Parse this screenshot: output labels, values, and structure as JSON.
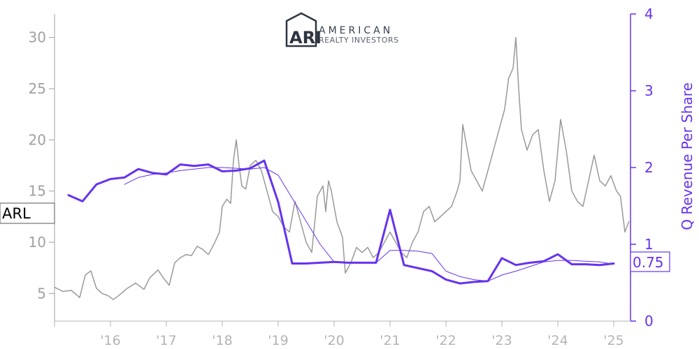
{
  "logo": {
    "mark": "ARI",
    "line1": "AMERICAN",
    "line2": "REALTY INVESTORS"
  },
  "chart_data": {
    "type": "line",
    "ticker": "ARL",
    "last_value_label": "0.75",
    "ylabel_right": "Q Revenue Per Share",
    "left_axis": {
      "ticks": [
        5,
        10,
        15,
        20,
        25,
        30
      ],
      "ylim": [
        2.3,
        32.3
      ]
    },
    "right_axis": {
      "ticks": [
        0,
        1,
        2,
        3,
        4
      ],
      "ylim": [
        0,
        4
      ]
    },
    "x_axis": {
      "range": [
        2015.0,
        2025.3
      ],
      "ticks": [
        {
          "x": 2016,
          "label": "'16"
        },
        {
          "x": 2017,
          "label": "'17"
        },
        {
          "x": 2018,
          "label": "'18"
        },
        {
          "x": 2019,
          "label": "'19"
        },
        {
          "x": 2020,
          "label": "'20"
        },
        {
          "x": 2021,
          "label": "'21"
        },
        {
          "x": 2022,
          "label": "'22"
        },
        {
          "x": 2023,
          "label": "'23"
        },
        {
          "x": 2024,
          "label": "'24"
        },
        {
          "x": 2025,
          "label": "'25"
        }
      ]
    },
    "colors": {
      "price": "#999999",
      "revenue": "#6633ee",
      "left_axis": "#a0a0a0",
      "right_axis": "#6633ee"
    },
    "series": [
      {
        "key": "price",
        "axis": "left",
        "points": [
          [
            2015.0,
            5.6
          ],
          [
            2015.15,
            5.2
          ],
          [
            2015.3,
            5.3
          ],
          [
            2015.45,
            4.6
          ],
          [
            2015.55,
            6.8
          ],
          [
            2015.65,
            7.2
          ],
          [
            2015.75,
            5.5
          ],
          [
            2015.85,
            5.0
          ],
          [
            2015.95,
            4.8
          ],
          [
            2016.05,
            4.4
          ],
          [
            2016.15,
            4.8
          ],
          [
            2016.3,
            5.5
          ],
          [
            2016.45,
            6.0
          ],
          [
            2016.6,
            5.4
          ],
          [
            2016.7,
            6.5
          ],
          [
            2016.85,
            7.3
          ],
          [
            2016.95,
            6.5
          ],
          [
            2017.05,
            5.8
          ],
          [
            2017.15,
            8.0
          ],
          [
            2017.25,
            8.5
          ],
          [
            2017.35,
            8.8
          ],
          [
            2017.45,
            8.7
          ],
          [
            2017.55,
            9.6
          ],
          [
            2017.65,
            9.3
          ],
          [
            2017.75,
            8.8
          ],
          [
            2017.85,
            9.8
          ],
          [
            2017.95,
            11.0
          ],
          [
            2018.0,
            13.5
          ],
          [
            2018.08,
            14.2
          ],
          [
            2018.15,
            13.8
          ],
          [
            2018.2,
            18.0
          ],
          [
            2018.25,
            20.0
          ],
          [
            2018.3,
            17.5
          ],
          [
            2018.35,
            15.5
          ],
          [
            2018.42,
            15.2
          ],
          [
            2018.5,
            17.5
          ],
          [
            2018.6,
            18.0
          ],
          [
            2018.7,
            17.0
          ],
          [
            2018.8,
            15.0
          ],
          [
            2018.9,
            13.0
          ],
          [
            2019.0,
            12.5
          ],
          [
            2019.1,
            11.5
          ],
          [
            2019.2,
            11.0
          ],
          [
            2019.3,
            14.0
          ],
          [
            2019.4,
            12.0
          ],
          [
            2019.5,
            10.0
          ],
          [
            2019.6,
            9.0
          ],
          [
            2019.7,
            14.5
          ],
          [
            2019.8,
            15.5
          ],
          [
            2019.85,
            13.0
          ],
          [
            2019.9,
            16.0
          ],
          [
            2019.95,
            15.0
          ],
          [
            2020.05,
            12.0
          ],
          [
            2020.15,
            10.5
          ],
          [
            2020.2,
            7.0
          ],
          [
            2020.3,
            8.0
          ],
          [
            2020.4,
            9.5
          ],
          [
            2020.5,
            9.0
          ],
          [
            2020.6,
            9.5
          ],
          [
            2020.7,
            8.5
          ],
          [
            2020.8,
            9.0
          ],
          [
            2020.9,
            10.0
          ],
          [
            2021.0,
            11.0
          ],
          [
            2021.1,
            10.0
          ],
          [
            2021.2,
            9.0
          ],
          [
            2021.3,
            8.5
          ],
          [
            2021.4,
            10.0
          ],
          [
            2021.5,
            11.0
          ],
          [
            2021.6,
            13.0
          ],
          [
            2021.7,
            13.5
          ],
          [
            2021.8,
            12.0
          ],
          [
            2021.9,
            12.5
          ],
          [
            2022.0,
            13.0
          ],
          [
            2022.1,
            13.5
          ],
          [
            2022.2,
            15.0
          ],
          [
            2022.25,
            16.0
          ],
          [
            2022.3,
            21.5
          ],
          [
            2022.35,
            20.0
          ],
          [
            2022.45,
            17.0
          ],
          [
            2022.55,
            16.0
          ],
          [
            2022.65,
            15.0
          ],
          [
            2022.75,
            17.0
          ],
          [
            2022.85,
            19.0
          ],
          [
            2022.95,
            21.0
          ],
          [
            2023.05,
            23.0
          ],
          [
            2023.12,
            26.0
          ],
          [
            2023.2,
            27.0
          ],
          [
            2023.25,
            30.0
          ],
          [
            2023.3,
            25.0
          ],
          [
            2023.35,
            21.0
          ],
          [
            2023.45,
            19.0
          ],
          [
            2023.55,
            20.5
          ],
          [
            2023.65,
            21.0
          ],
          [
            2023.75,
            17.0
          ],
          [
            2023.85,
            14.0
          ],
          [
            2023.95,
            16.0
          ],
          [
            2024.05,
            22.0
          ],
          [
            2024.15,
            19.0
          ],
          [
            2024.25,
            15.0
          ],
          [
            2024.35,
            14.0
          ],
          [
            2024.45,
            13.5
          ],
          [
            2024.55,
            16.0
          ],
          [
            2024.65,
            18.5
          ],
          [
            2024.75,
            16.0
          ],
          [
            2024.85,
            15.5
          ],
          [
            2024.95,
            16.5
          ],
          [
            2025.05,
            15.0
          ],
          [
            2025.12,
            14.5
          ],
          [
            2025.2,
            11.0
          ],
          [
            2025.27,
            12.0
          ]
        ]
      },
      {
        "key": "revenue",
        "axis": "right",
        "points": [
          [
            2015.25,
            1.64
          ],
          [
            2015.5,
            1.56
          ],
          [
            2015.75,
            1.78
          ],
          [
            2016.0,
            1.85
          ],
          [
            2016.25,
            1.87
          ],
          [
            2016.5,
            1.98
          ],
          [
            2016.75,
            1.93
          ],
          [
            2017.0,
            1.91
          ],
          [
            2017.25,
            2.04
          ],
          [
            2017.5,
            2.02
          ],
          [
            2017.75,
            2.04
          ],
          [
            2018.0,
            1.95
          ],
          [
            2018.25,
            1.96
          ],
          [
            2018.5,
            1.99
          ],
          [
            2018.75,
            2.09
          ],
          [
            2019.0,
            1.55
          ],
          [
            2019.25,
            0.75
          ],
          [
            2019.5,
            0.75
          ],
          [
            2019.75,
            0.76
          ],
          [
            2020.0,
            0.77
          ],
          [
            2020.25,
            0.76
          ],
          [
            2020.5,
            0.76
          ],
          [
            2020.75,
            0.76
          ],
          [
            2021.0,
            1.45
          ],
          [
            2021.25,
            0.73
          ],
          [
            2021.5,
            0.69
          ],
          [
            2021.75,
            0.65
          ],
          [
            2022.0,
            0.54
          ],
          [
            2022.25,
            0.49
          ],
          [
            2022.5,
            0.51
          ],
          [
            2022.75,
            0.52
          ],
          [
            2023.0,
            0.82
          ],
          [
            2023.25,
            0.73
          ],
          [
            2023.5,
            0.76
          ],
          [
            2023.75,
            0.78
          ],
          [
            2024.0,
            0.87
          ],
          [
            2024.25,
            0.74
          ],
          [
            2024.5,
            0.74
          ],
          [
            2024.75,
            0.73
          ],
          [
            2025.0,
            0.75
          ]
        ]
      },
      {
        "key": "revenue_average",
        "axis": "right",
        "points": [
          [
            2016.25,
            1.78
          ],
          [
            2016.5,
            1.87
          ],
          [
            2016.75,
            1.91
          ],
          [
            2017.0,
            1.93
          ],
          [
            2017.25,
            1.96
          ],
          [
            2017.5,
            1.98
          ],
          [
            2017.75,
            2.0
          ],
          [
            2018.0,
            2.0
          ],
          [
            2018.25,
            1.99
          ],
          [
            2018.5,
            1.98
          ],
          [
            2018.75,
            2.0
          ],
          [
            2019.0,
            1.9
          ],
          [
            2019.25,
            1.6
          ],
          [
            2019.5,
            1.3
          ],
          [
            2019.75,
            1.0
          ],
          [
            2020.0,
            0.77
          ],
          [
            2020.25,
            0.76
          ],
          [
            2020.5,
            0.76
          ],
          [
            2020.75,
            0.76
          ],
          [
            2021.0,
            0.92
          ],
          [
            2021.25,
            0.92
          ],
          [
            2021.5,
            0.91
          ],
          [
            2021.75,
            0.88
          ],
          [
            2022.0,
            0.65
          ],
          [
            2022.25,
            0.58
          ],
          [
            2022.5,
            0.54
          ],
          [
            2022.75,
            0.52
          ],
          [
            2023.0,
            0.6
          ],
          [
            2023.25,
            0.65
          ],
          [
            2023.5,
            0.71
          ],
          [
            2023.75,
            0.77
          ],
          [
            2024.0,
            0.79
          ],
          [
            2024.25,
            0.79
          ],
          [
            2024.5,
            0.78
          ],
          [
            2024.75,
            0.77
          ],
          [
            2025.0,
            0.74
          ]
        ]
      }
    ]
  }
}
